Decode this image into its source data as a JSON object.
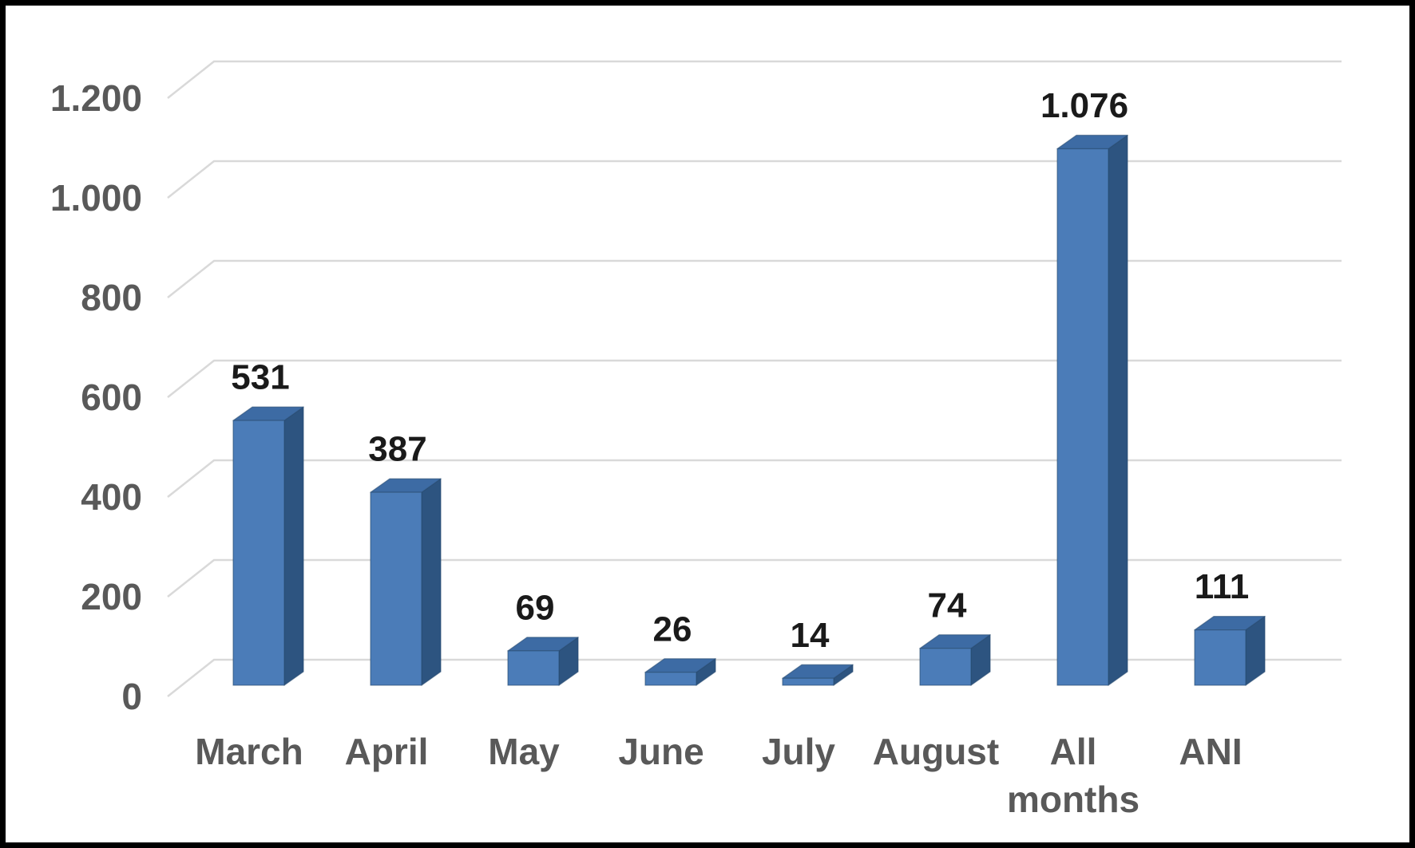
{
  "chart_data": {
    "type": "bar",
    "variant": "3d-clustered-column",
    "title": "",
    "xlabel": "",
    "ylabel": "",
    "categories": [
      "March",
      "April",
      "May",
      "June",
      "July",
      "August",
      "All months",
      "ANI"
    ],
    "values": [
      531,
      387,
      69,
      26,
      14,
      74,
      1076,
      111
    ],
    "data_labels": [
      "531",
      "387",
      "69",
      "26",
      "14",
      "74",
      "1.076",
      "111"
    ],
    "y_ticks": [
      0,
      200,
      400,
      600,
      800,
      1000,
      1200
    ],
    "y_tick_labels": [
      "0",
      "200",
      "400",
      "600",
      "800",
      "1.000",
      "1.200"
    ],
    "ylim": [
      0,
      1200
    ],
    "grid": true,
    "legend": false,
    "number_format": "european-dot-thousands",
    "colors": {
      "bar_front": "#4b7cb8",
      "bar_top": "#3d6ba4",
      "bar_side": "#2d5480",
      "bar_edge": "#27496e",
      "gridline": "#d9d9d9",
      "data_label": "#1a1a1a",
      "axis_label": "#595959",
      "background": "#ffffff",
      "frame": "#000000"
    }
  }
}
